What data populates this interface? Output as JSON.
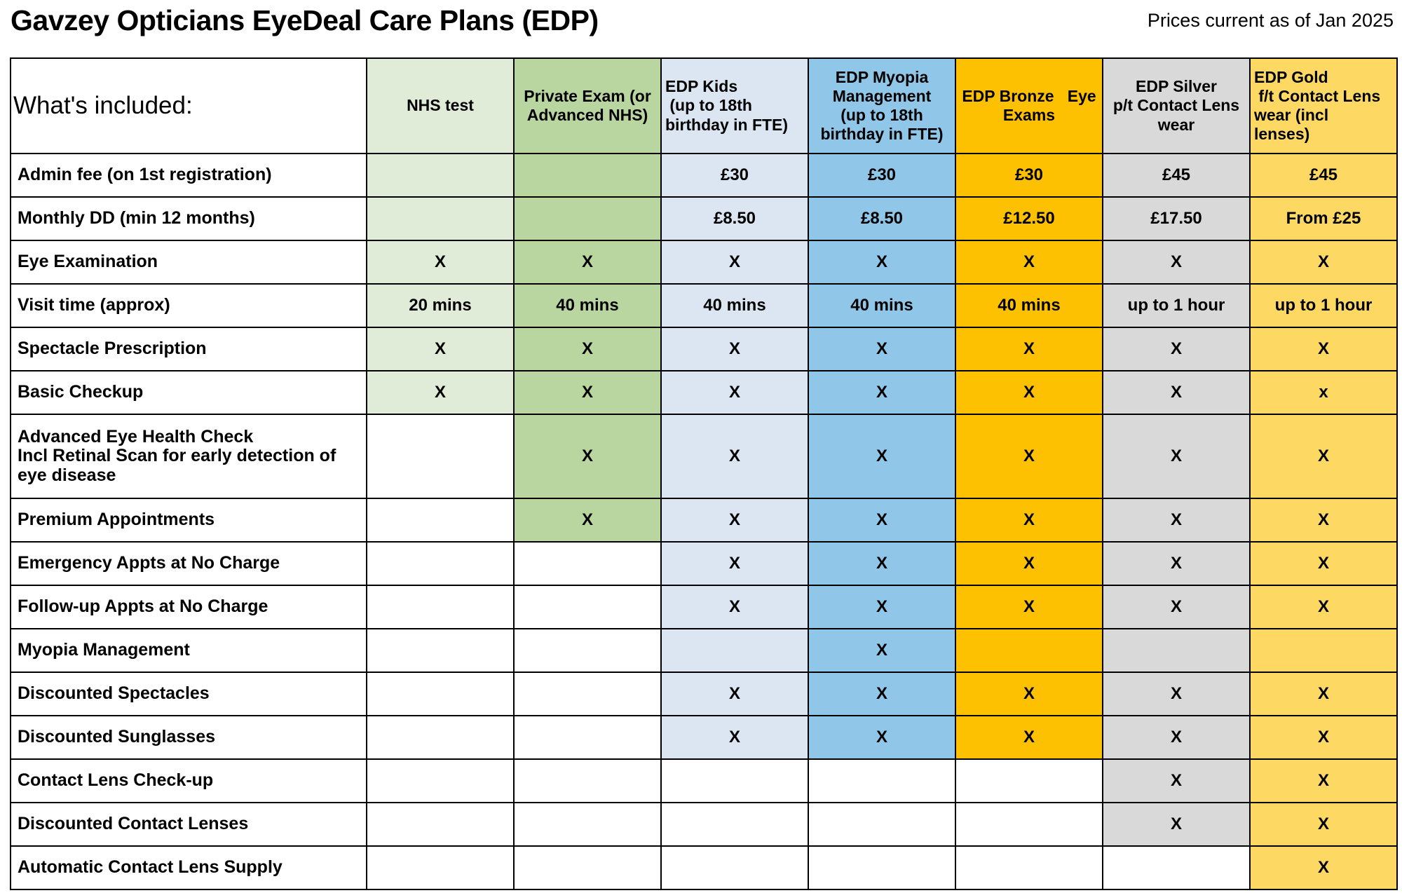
{
  "header": {
    "title": "Gavzey Opticians EyeDeal Care Plans (EDP)",
    "price_note": "Prices current as of Jan 2025"
  },
  "table": {
    "corner_label": "What's included:",
    "columns": [
      {
        "key": "nhs",
        "label": "NHS test",
        "color": "#e1ecd8",
        "align": "center"
      },
      {
        "key": "private",
        "label": "Private Exam (or\nAdvanced NHS)",
        "color": "#b9d6a1",
        "align": "center"
      },
      {
        "key": "kids",
        "label": "EDP Kids\n (up to 18th\nbirthday in FTE)",
        "color": "#dbe6f2",
        "align": "left"
      },
      {
        "key": "myopia",
        "label": "EDP Myopia\nManagement\n(up to 18th\nbirthday in FTE)",
        "color": "#90c6e8",
        "align": "center"
      },
      {
        "key": "bronze",
        "label": "EDP Bronze   Eye\nExams",
        "color": "#fdc101",
        "align": "center"
      },
      {
        "key": "silver",
        "label": "EDP Silver\np/t Contact Lens\nwear",
        "color": "#d9d9d9",
        "align": "center"
      },
      {
        "key": "gold",
        "label": "EDP Gold\n f/t Contact Lens\nwear (incl\nlenses)",
        "color": "#fdd863",
        "align": "left"
      }
    ],
    "rows": [
      {
        "label": "Admin fee (on 1st registration)",
        "tall": false,
        "cells": [
          {
            "text": "",
            "filled": true
          },
          {
            "text": "",
            "filled": true
          },
          {
            "text": "£30",
            "filled": true
          },
          {
            "text": "£30",
            "filled": true
          },
          {
            "text": "£30",
            "filled": true
          },
          {
            "text": "£45",
            "filled": true
          },
          {
            "text": "£45",
            "filled": true
          }
        ]
      },
      {
        "label": "Monthly DD (min 12 months)",
        "tall": false,
        "cells": [
          {
            "text": "",
            "filled": true
          },
          {
            "text": "",
            "filled": true
          },
          {
            "text": "£8.50",
            "filled": true
          },
          {
            "text": "£8.50",
            "filled": true
          },
          {
            "text": "£12.50",
            "filled": true
          },
          {
            "text": "£17.50",
            "filled": true
          },
          {
            "text": "From £25",
            "filled": true
          }
        ]
      },
      {
        "label": "Eye Examination",
        "tall": false,
        "cells": [
          {
            "text": "X",
            "filled": true
          },
          {
            "text": "X",
            "filled": true
          },
          {
            "text": "X",
            "filled": true
          },
          {
            "text": "X",
            "filled": true
          },
          {
            "text": "X",
            "filled": true
          },
          {
            "text": "X",
            "filled": true
          },
          {
            "text": "X",
            "filled": true
          }
        ]
      },
      {
        "label": "Visit time (approx)",
        "tall": false,
        "cells": [
          {
            "text": "20 mins",
            "filled": true
          },
          {
            "text": "40 mins",
            "filled": true
          },
          {
            "text": "40 mins",
            "filled": true
          },
          {
            "text": "40 mins",
            "filled": true
          },
          {
            "text": "40 mins",
            "filled": true
          },
          {
            "text": "up to 1 hour",
            "filled": true
          },
          {
            "text": "up to 1 hour",
            "filled": true
          }
        ]
      },
      {
        "label": "Spectacle Prescription",
        "tall": false,
        "cells": [
          {
            "text": "X",
            "filled": true
          },
          {
            "text": "X",
            "filled": true
          },
          {
            "text": "X",
            "filled": true
          },
          {
            "text": "X",
            "filled": true
          },
          {
            "text": "X",
            "filled": true
          },
          {
            "text": "X",
            "filled": true
          },
          {
            "text": "X",
            "filled": true
          }
        ]
      },
      {
        "label": "Basic Checkup",
        "tall": false,
        "cells": [
          {
            "text": "X",
            "filled": true
          },
          {
            "text": "X",
            "filled": true
          },
          {
            "text": "X",
            "filled": true
          },
          {
            "text": "X",
            "filled": true
          },
          {
            "text": "X",
            "filled": true
          },
          {
            "text": "X",
            "filled": true
          },
          {
            "text": "x",
            "filled": true
          }
        ]
      },
      {
        "label": "Advanced Eye Health Check\nIncl Retinal Scan for early detection of eye disease",
        "tall": true,
        "cells": [
          {
            "text": "",
            "filled": false
          },
          {
            "text": "X",
            "filled": true
          },
          {
            "text": "X",
            "filled": true
          },
          {
            "text": "X",
            "filled": true
          },
          {
            "text": "X",
            "filled": true
          },
          {
            "text": "X",
            "filled": true
          },
          {
            "text": "X",
            "filled": true
          }
        ]
      },
      {
        "label": "Premium Appointments",
        "tall": false,
        "cells": [
          {
            "text": "",
            "filled": false
          },
          {
            "text": "X",
            "filled": true
          },
          {
            "text": "X",
            "filled": true
          },
          {
            "text": "X",
            "filled": true
          },
          {
            "text": "X",
            "filled": true
          },
          {
            "text": "X",
            "filled": true
          },
          {
            "text": "X",
            "filled": true
          }
        ]
      },
      {
        "label": "Emergency Appts at No Charge",
        "tall": false,
        "cells": [
          {
            "text": "",
            "filled": false
          },
          {
            "text": "",
            "filled": false
          },
          {
            "text": "X",
            "filled": true
          },
          {
            "text": "X",
            "filled": true
          },
          {
            "text": "X",
            "filled": true
          },
          {
            "text": "X",
            "filled": true
          },
          {
            "text": "X",
            "filled": true
          }
        ]
      },
      {
        "label": "Follow-up Appts at No Charge",
        "tall": false,
        "cells": [
          {
            "text": "",
            "filled": false
          },
          {
            "text": "",
            "filled": false
          },
          {
            "text": "X",
            "filled": true
          },
          {
            "text": "X",
            "filled": true
          },
          {
            "text": "X",
            "filled": true
          },
          {
            "text": "X",
            "filled": true
          },
          {
            "text": "X",
            "filled": true
          }
        ]
      },
      {
        "label": "Myopia Management",
        "tall": false,
        "cells": [
          {
            "text": "",
            "filled": false
          },
          {
            "text": "",
            "filled": false
          },
          {
            "text": "",
            "filled": true
          },
          {
            "text": "X",
            "filled": true
          },
          {
            "text": "",
            "filled": true
          },
          {
            "text": "",
            "filled": true
          },
          {
            "text": "",
            "filled": true
          }
        ]
      },
      {
        "label": "Discounted Spectacles",
        "tall": false,
        "cells": [
          {
            "text": "",
            "filled": false
          },
          {
            "text": "",
            "filled": false
          },
          {
            "text": "X",
            "filled": true
          },
          {
            "text": "X",
            "filled": true
          },
          {
            "text": "X",
            "filled": true
          },
          {
            "text": "X",
            "filled": true
          },
          {
            "text": "X",
            "filled": true
          }
        ]
      },
      {
        "label": "Discounted Sunglasses",
        "tall": false,
        "cells": [
          {
            "text": "",
            "filled": false
          },
          {
            "text": "",
            "filled": false
          },
          {
            "text": "X",
            "filled": true
          },
          {
            "text": "X",
            "filled": true
          },
          {
            "text": "X",
            "filled": true
          },
          {
            "text": "X",
            "filled": true
          },
          {
            "text": "X",
            "filled": true
          }
        ]
      },
      {
        "label": "Contact Lens Check-up",
        "tall": false,
        "cells": [
          {
            "text": "",
            "filled": false
          },
          {
            "text": "",
            "filled": false
          },
          {
            "text": "",
            "filled": false
          },
          {
            "text": "",
            "filled": false
          },
          {
            "text": "",
            "filled": false
          },
          {
            "text": "X",
            "filled": true
          },
          {
            "text": "X",
            "filled": true
          }
        ]
      },
      {
        "label": "Discounted Contact Lenses",
        "tall": false,
        "cells": [
          {
            "text": "",
            "filled": false
          },
          {
            "text": "",
            "filled": false
          },
          {
            "text": "",
            "filled": false
          },
          {
            "text": "",
            "filled": false
          },
          {
            "text": "",
            "filled": false
          },
          {
            "text": "X",
            "filled": true
          },
          {
            "text": "X",
            "filled": true
          }
        ]
      },
      {
        "label": "Automatic Contact Lens Supply",
        "tall": false,
        "cells": [
          {
            "text": "",
            "filled": false
          },
          {
            "text": "",
            "filled": false
          },
          {
            "text": "",
            "filled": false
          },
          {
            "text": "",
            "filled": false
          },
          {
            "text": "",
            "filled": false
          },
          {
            "text": "",
            "filled": false
          },
          {
            "text": "X",
            "filled": true
          }
        ]
      }
    ]
  }
}
